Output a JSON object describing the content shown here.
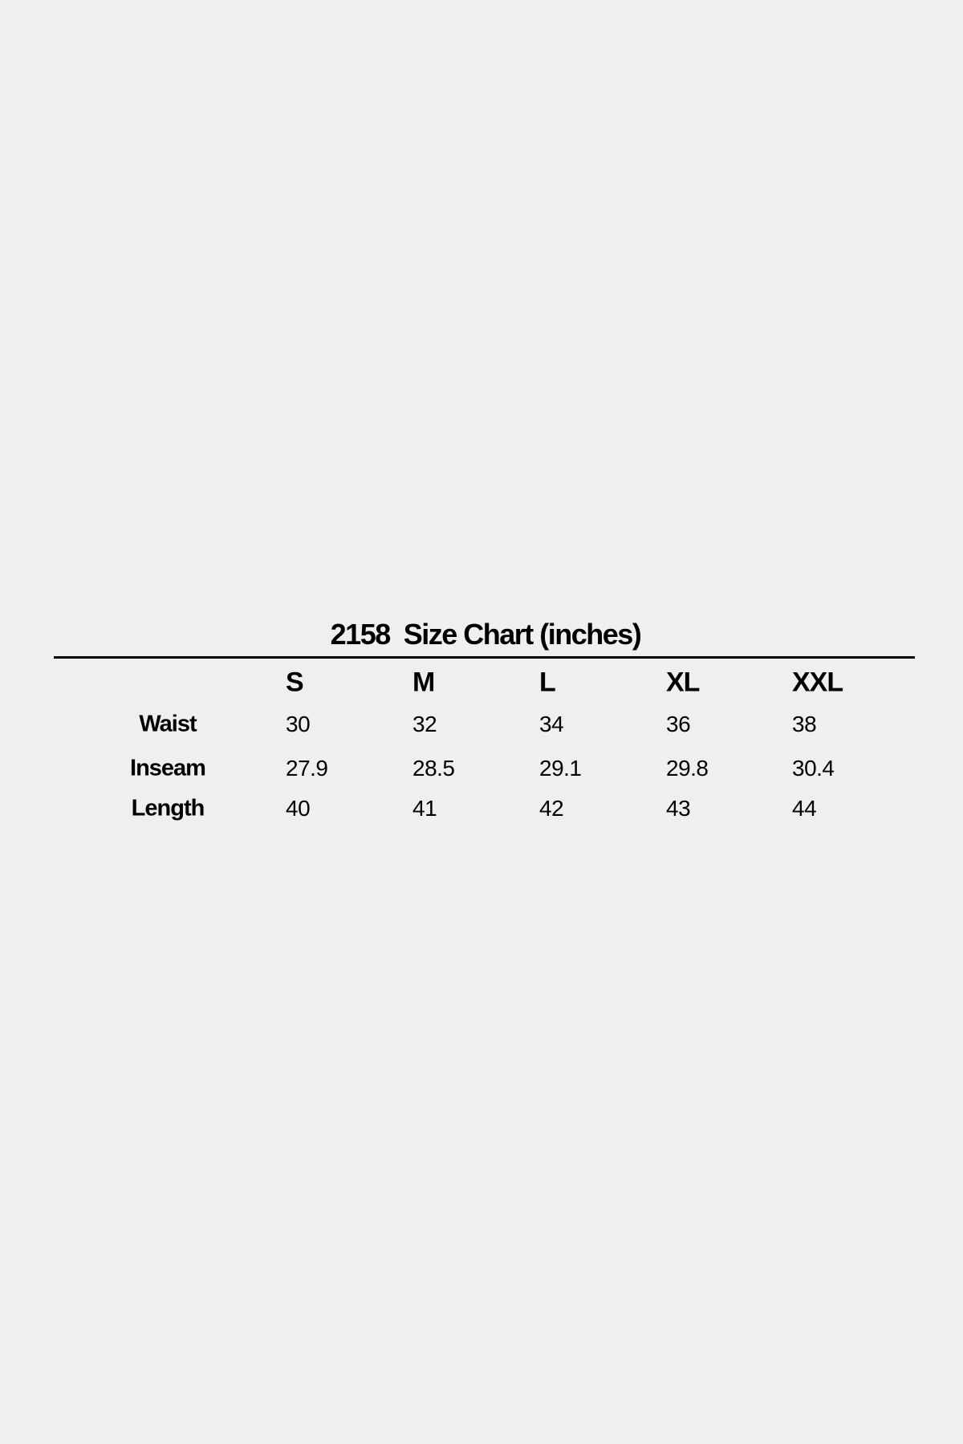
{
  "title": "2158  Size Chart (inches)",
  "sizes": [
    "S",
    "M",
    "L",
    "XL",
    "XXL"
  ],
  "rows": [
    {
      "label": "Waist",
      "values": [
        "30",
        "32",
        "34",
        "36",
        "38"
      ]
    },
    {
      "label": "Inseam",
      "values": [
        "27.9",
        "28.5",
        "29.1",
        "29.8",
        "30.4"
      ]
    },
    {
      "label": "Length",
      "values": [
        "40",
        "41",
        "42",
        "43",
        "44"
      ]
    }
  ]
}
